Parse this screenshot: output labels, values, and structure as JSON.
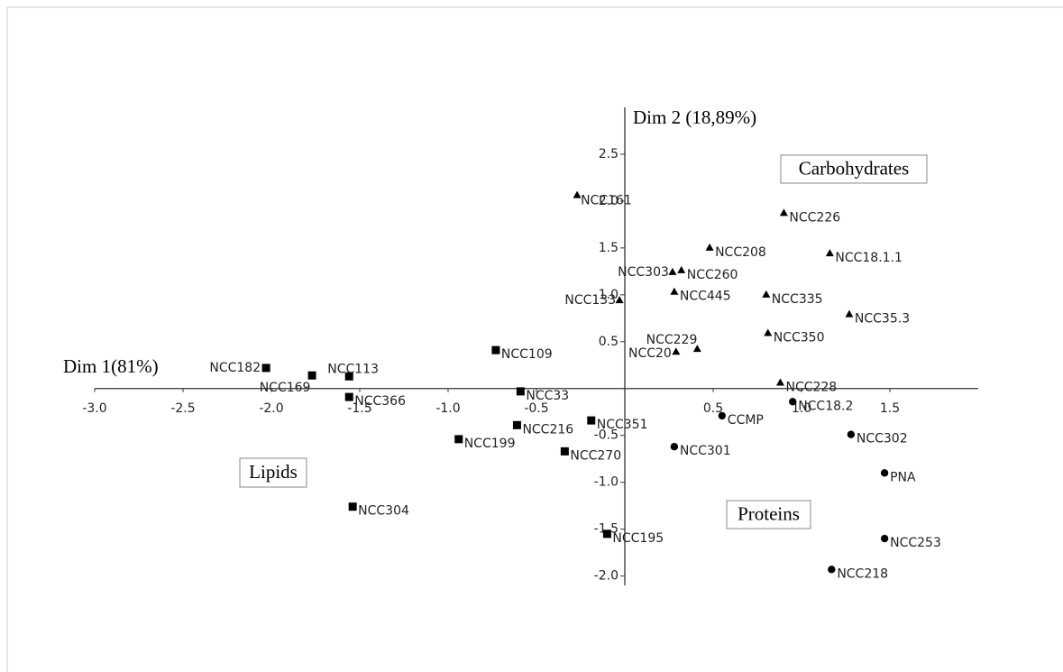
{
  "chart_data": {
    "type": "scatter",
    "x_label": "Dim 1(81%)",
    "y_label": "Dim 2 (18,89%)",
    "xlim": [
      -3.0,
      2.0
    ],
    "ylim": [
      -2.1,
      3.0
    ],
    "xticks": [
      {
        "value": -3.0,
        "label": "-3.0"
      },
      -2.5,
      {
        "value": -2.0,
        "label": "-2.0"
      },
      -1.5,
      {
        "value": -1.0,
        "label": "-1.0"
      },
      -0.5,
      0.5,
      {
        "value": 1.0,
        "label": "1.0"
      },
      1.5
    ],
    "yticks": [
      2.5,
      {
        "value": 2.0,
        "label": "2.0"
      },
      1.5,
      {
        "value": 1.0,
        "label": "1.0"
      },
      0.5,
      -0.5,
      {
        "value": -1.0,
        "label": "-1.0"
      },
      -1.5,
      {
        "value": -2.0,
        "label": "-2.0"
      }
    ],
    "annotations": [
      "Carbohydrates",
      "Lipids",
      "Proteins"
    ],
    "series": [
      {
        "marker": "triangle",
        "color": "#000000",
        "labels": [
          "NCC161",
          "NCC226",
          "NCC208",
          "NCC18.1.1",
          "NCC303",
          "NCC260",
          "NCC133",
          "NCC445",
          "NCC335",
          "NCC35.3",
          "NCC229",
          "NCC20",
          "NCC350",
          "NCC228"
        ],
        "x": [
          -0.27,
          0.9,
          0.48,
          1.16,
          0.27,
          0.32,
          -0.03,
          0.28,
          0.8,
          1.27,
          0.41,
          0.29,
          0.81,
          0.88
        ],
        "y": [
          2.06,
          1.87,
          1.5,
          1.44,
          1.24,
          1.26,
          0.94,
          1.03,
          1.0,
          0.79,
          0.42,
          0.39,
          0.59,
          0.06
        ]
      },
      {
        "marker": "circle",
        "color": "#000000",
        "labels": [
          "NCC18.2",
          "CCMP",
          "NCC302",
          "NCC301",
          "PNA",
          "NCC253",
          "NCC218"
        ],
        "x": [
          0.95,
          0.55,
          1.28,
          0.28,
          1.47,
          1.47,
          1.17
        ],
        "y": [
          -0.14,
          -0.29,
          -0.49,
          -0.62,
          -0.9,
          -1.6,
          -1.93
        ]
      },
      {
        "marker": "square",
        "color": "#000000",
        "labels": [
          "NCC182",
          "NCC169",
          "NCC113",
          "NCC366",
          "NCC109",
          "NCC33",
          "NCC216",
          "NCC351",
          "NCC199",
          "NCC270",
          "NCC304",
          "NCC195"
        ],
        "x": [
          -2.03,
          -1.77,
          -1.56,
          -1.56,
          -0.73,
          -0.59,
          -0.61,
          -0.19,
          -0.94,
          -0.34,
          -1.54,
          -0.1
        ],
        "y": [
          0.22,
          0.14,
          0.13,
          -0.09,
          0.41,
          -0.03,
          -0.39,
          -0.34,
          -0.54,
          -0.67,
          -1.26,
          -1.55
        ]
      }
    ]
  }
}
